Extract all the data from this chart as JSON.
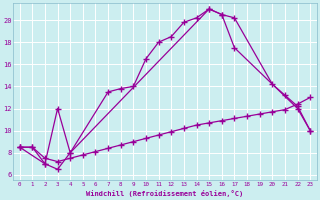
{
  "bg_color": "#cceef0",
  "line_color": "#990099",
  "grid_color": "#aadddd",
  "xlabel": "Windchill (Refroidissement éolien,°C)",
  "xlim": [
    -0.5,
    23.5
  ],
  "ylim": [
    5.5,
    21.5
  ],
  "xticks": [
    0,
    1,
    2,
    3,
    4,
    5,
    6,
    7,
    8,
    9,
    10,
    11,
    12,
    13,
    14,
    15,
    16,
    17,
    18,
    19,
    20,
    21,
    22,
    23
  ],
  "yticks": [
    6,
    8,
    10,
    12,
    14,
    16,
    18,
    20
  ],
  "series": [
    {
      "x": [
        0,
        1,
        2,
        3,
        4,
        7,
        8,
        9,
        10,
        11,
        12,
        13,
        14,
        15,
        16,
        17,
        22,
        23
      ],
      "y": [
        8.5,
        8.5,
        7.0,
        12.0,
        8.0,
        13.5,
        13.8,
        14.0,
        16.5,
        18.0,
        18.5,
        19.8,
        20.2,
        21.0,
        20.5,
        17.5,
        12.0,
        10.0
      ]
    },
    {
      "x": [
        0,
        2,
        3,
        4,
        15,
        16,
        17,
        20,
        21,
        22,
        23
      ],
      "y": [
        8.5,
        7.0,
        6.5,
        8.0,
        21.0,
        20.5,
        20.2,
        14.2,
        13.2,
        12.2,
        10.0
      ]
    },
    {
      "x": [
        0,
        1,
        2,
        3,
        4,
        5,
        6,
        7,
        8,
        9,
        10,
        11,
        12,
        13,
        14,
        15,
        16,
        17,
        18,
        19,
        20,
        21,
        22,
        23
      ],
      "y": [
        8.5,
        8.5,
        7.5,
        7.2,
        7.5,
        7.8,
        8.1,
        8.4,
        8.7,
        9.0,
        9.3,
        9.6,
        9.9,
        10.2,
        10.5,
        10.7,
        10.9,
        11.1,
        11.3,
        11.5,
        11.7,
        11.9,
        12.4,
        13.0
      ]
    }
  ]
}
